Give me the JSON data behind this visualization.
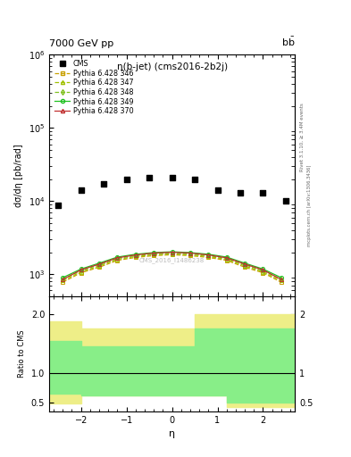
{
  "title_top": "7000 GeV pp",
  "plot_title": "η(b-jet) (cms2016-2b2j)",
  "ylabel_main": "dσ/dη [pb/rad]",
  "ylabel_ratio": "Ratio to CMS",
  "xlabel": "η",
  "right_label_top": "Rivet 3.1.10, ≥ 3.4M events",
  "right_label_bottom": "mcplots.cern.ch [arXiv:1306.3436]",
  "watermark": "CMS_2016_I1486238",
  "cms_eta": [
    -2.5,
    -2.0,
    -1.5,
    -1.0,
    -0.5,
    0.0,
    0.5,
    1.0,
    1.5,
    2.0,
    2.5
  ],
  "cms_vals": [
    8800,
    14000,
    17000,
    20000,
    21000,
    21000,
    20000,
    14000,
    13000,
    13000,
    10000
  ],
  "py_eta": [
    -2.4,
    -2.0,
    -1.6,
    -1.2,
    -0.8,
    -0.4,
    0.0,
    0.4,
    0.8,
    1.2,
    1.6,
    2.0,
    2.4
  ],
  "py346_vals": [
    780,
    1050,
    1250,
    1550,
    1700,
    1800,
    1850,
    1800,
    1700,
    1550,
    1250,
    1050,
    780
  ],
  "py347_vals": [
    820,
    1080,
    1300,
    1600,
    1750,
    1850,
    1900,
    1850,
    1750,
    1600,
    1300,
    1080,
    820
  ],
  "py348_vals": [
    860,
    1120,
    1350,
    1650,
    1800,
    1900,
    1950,
    1900,
    1800,
    1650,
    1350,
    1120,
    860
  ],
  "py349_vals": [
    900,
    1180,
    1420,
    1720,
    1880,
    1980,
    2030,
    1980,
    1880,
    1720,
    1420,
    1180,
    900
  ],
  "py370_vals": [
    850,
    1150,
    1380,
    1680,
    1840,
    1950,
    2000,
    1950,
    1840,
    1680,
    1380,
    1150,
    850
  ],
  "color_346": "#c8a000",
  "color_347": "#a0c000",
  "color_348": "#80c020",
  "color_349": "#20c020",
  "color_370": "#c03030",
  "ylim_main": [
    500,
    1000000
  ],
  "ylim_ratio": [
    0.35,
    2.3
  ],
  "xlim": [
    -2.7,
    2.7
  ]
}
